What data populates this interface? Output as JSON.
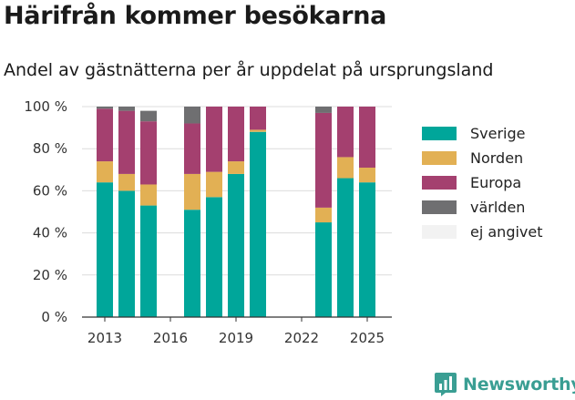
{
  "title": "Härifrån kommer besökarna",
  "subtitle": "Andel av gästnätterna per år uppdelat på ursprungsland",
  "brand": {
    "name": "Newsworthy",
    "icon": "bar-chart-logo-icon",
    "color": "#3a9e93"
  },
  "chart_data": {
    "type": "bar",
    "stacked": true,
    "categories": [
      2013,
      2014,
      2015,
      2016,
      2017,
      2018,
      2019,
      2020,
      2021,
      2022,
      2023,
      2024,
      2025
    ],
    "series": [
      {
        "name": "Sverige",
        "color": "#00a69a",
        "values": [
          64,
          60,
          53,
          null,
          51,
          57,
          68,
          88,
          null,
          null,
          45,
          66,
          64
        ]
      },
      {
        "name": "Norden",
        "color": "#e2b054",
        "values": [
          10,
          8,
          10,
          null,
          17,
          12,
          6,
          1,
          null,
          null,
          7,
          10,
          7
        ]
      },
      {
        "name": "Europa",
        "color": "#a4406f",
        "values": [
          25,
          30,
          30,
          null,
          24,
          31,
          26,
          11,
          null,
          null,
          45,
          24,
          29
        ]
      },
      {
        "name": "världen",
        "color": "#6f6f71",
        "values": [
          1,
          2,
          5,
          null,
          8,
          0,
          0,
          0,
          null,
          null,
          3,
          0,
          0
        ]
      },
      {
        "name": "ej angivet",
        "color": "#f2f2f2",
        "values": [
          0,
          0,
          0,
          null,
          0,
          0,
          0,
          0,
          null,
          null,
          0,
          0,
          0
        ]
      }
    ],
    "ylim": [
      0,
      100
    ],
    "yticks": [
      "0 %",
      "20 %",
      "40 %",
      "60 %",
      "80 %",
      "100 %"
    ],
    "xticks": [
      "2013",
      "2016",
      "2019",
      "2022",
      "2025"
    ],
    "grid": true,
    "legend": "right"
  }
}
